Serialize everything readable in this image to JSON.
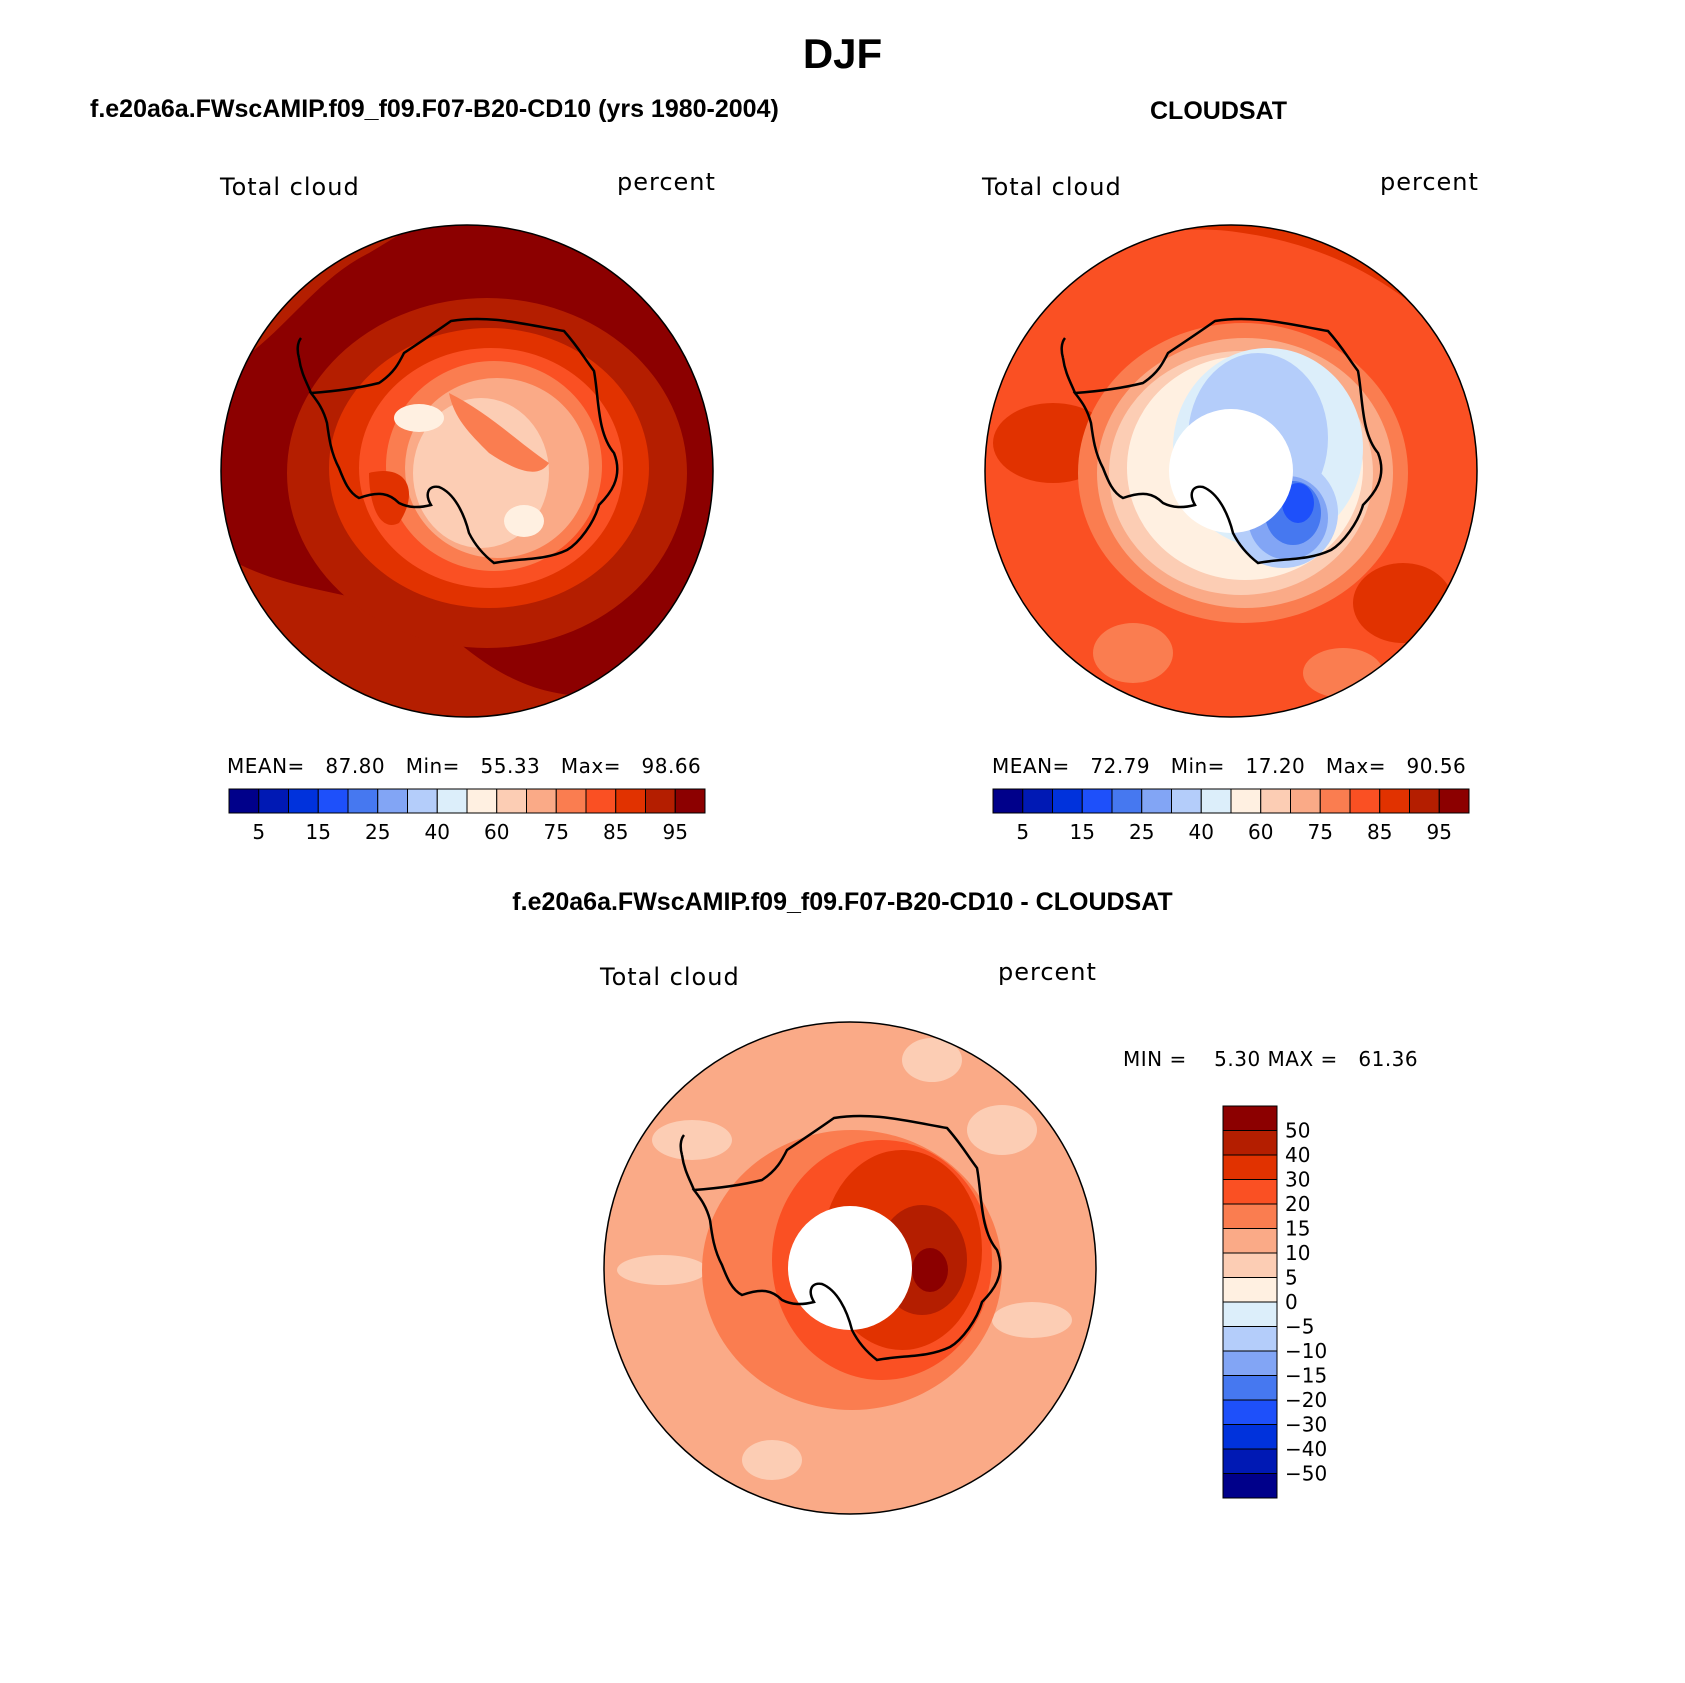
{
  "season": "DJF",
  "panels": {
    "model": {
      "title": "f.e20a6a.FWscAMIP.f09_f09.F07-B20-CD10 (yrs 1980-2004)",
      "variable": "Total cloud",
      "units": "percent",
      "stats": "MEAN=   87.80   Min=   55.33   Max=   98.66"
    },
    "obs": {
      "title": "CLOUDSAT",
      "variable": "Total cloud",
      "units": "percent",
      "stats": "MEAN=   72.79   Min=   17.20   Max=   90.56"
    },
    "diff": {
      "title": "f.e20a6a.FWscAMIP.f09_f09.F07-B20-CD10 - CLOUDSAT",
      "variable": "Total cloud",
      "units": "percent",
      "stats": "MIN =    5.30 MAX =   61.36"
    }
  },
  "colorbar_abs": {
    "colors": [
      "#00008a",
      "#0019b4",
      "#0032dc",
      "#1e50fa",
      "#4678f0",
      "#82a5f5",
      "#b4cdfa",
      "#dceefa",
      "#fff0e1",
      "#fccdb4",
      "#faaa87",
      "#fa7d50",
      "#fa5023",
      "#e13200",
      "#b41e00",
      "#8c0000"
    ],
    "tick_labels": [
      "5",
      "15",
      "25",
      "40",
      "60",
      "75",
      "85",
      "95"
    ]
  },
  "colorbar_diff": {
    "colors": [
      "#8c0000",
      "#b41e00",
      "#e13200",
      "#fa5023",
      "#fa7d50",
      "#faaa87",
      "#fccdb4",
      "#fff0e1",
      "#dceefa",
      "#b4cdfa",
      "#82a5f5",
      "#4678f0",
      "#1e50fa",
      "#0032dc",
      "#0019b4",
      "#00008a"
    ],
    "tick_labels": [
      "50",
      "40",
      "30",
      "20",
      "15",
      "10",
      "5",
      "0",
      "−5",
      "−10",
      "−15",
      "−20",
      "−30",
      "−40",
      "−50"
    ]
  },
  "chart_data": [
    {
      "type": "heatmap",
      "title": "f.e20a6a.FWscAMIP.f09_f09.F07-B20-CD10 (yrs 1980-2004)",
      "projection": "south polar stereographic",
      "variable": "Total cloud",
      "units": "percent",
      "mean": 87.8,
      "min": 55.33,
      "max": 98.66,
      "contour_levels": [
        5,
        10,
        15,
        20,
        25,
        30,
        40,
        50,
        60,
        70,
        75,
        80,
        85,
        90,
        95
      ]
    },
    {
      "type": "heatmap",
      "title": "CLOUDSAT",
      "projection": "south polar stereographic",
      "variable": "Total cloud",
      "units": "percent",
      "mean": 72.79,
      "min": 17.2,
      "max": 90.56,
      "contour_levels": [
        5,
        10,
        15,
        20,
        25,
        30,
        40,
        50,
        60,
        70,
        75,
        80,
        85,
        90,
        95
      ]
    },
    {
      "type": "heatmap",
      "title": "f.e20a6a.FWscAMIP.f09_f09.F07-B20-CD10 - CLOUDSAT",
      "projection": "south polar stereographic",
      "variable": "Total cloud",
      "units": "percent",
      "min": 5.3,
      "max": 61.36,
      "contour_levels": [
        -50,
        -40,
        -30,
        -20,
        -15,
        -10,
        -5,
        0,
        5,
        10,
        15,
        20,
        30,
        40,
        50
      ]
    }
  ]
}
